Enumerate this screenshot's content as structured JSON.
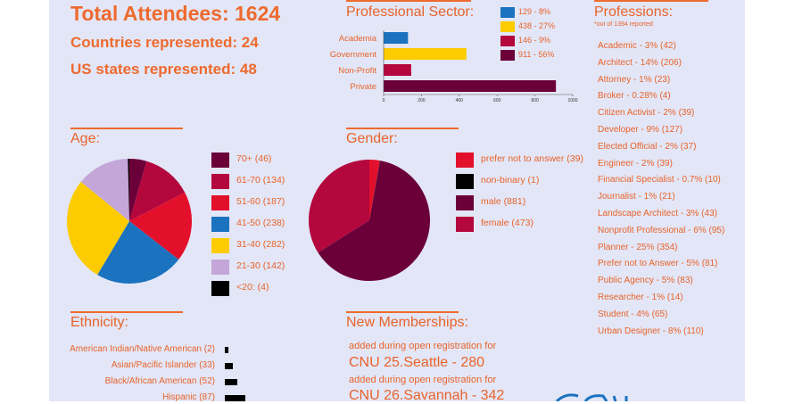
{
  "summary": {
    "total": "Total Attendees: 1624",
    "countries": "Countries represented: 24",
    "states": "US states represented: 48"
  },
  "colors": {
    "panel": "#e3e6f6",
    "accent": "#ee6a2f",
    "plum": "#6b0039",
    "crimson": "#b3073d",
    "red": "#e3102b",
    "blue": "#1b73c0",
    "gold": "#fccc00",
    "lavender": "#c4a6d8",
    "black": "#000000"
  },
  "sector": {
    "title": "Professional Sector:",
    "legend": [
      {
        "text": "129 - 8%",
        "color": "#1b73c0"
      },
      {
        "text": "438 - 27%",
        "color": "#fccc00"
      },
      {
        "text": "146 - 9%",
        "color": "#b3073d"
      },
      {
        "text": "911 - 56%",
        "color": "#6b0039"
      }
    ]
  },
  "professions": {
    "title": "Professions:",
    "note": "*out of 1394 reported",
    "items": [
      "Academic - 3% (42)",
      "Architect - 14% (206)",
      "Attorney - 1% (23)",
      "Broker - 0.28% (4)",
      "Citizen Activist - 2% (39)",
      "Developer - 9% (127)",
      "Elected Official - 2% (37)",
      "Engineer - 2% (39)",
      "Financial Specialist - 0.7% (10)",
      "Journalist - 1% (21)",
      "Landscape Architect - 3% (43)",
      "Nonprofit Professional - 6% (95)",
      "Planner - 25% (354)",
      "Prefer not to Answer - 5% (81)",
      "Public Agency - 5% (83)",
      "Researcher - 1% (14)",
      "Student - 4% (65)",
      "Urban Designer - 8% (110)"
    ]
  },
  "age": {
    "title": "Age:"
  },
  "gender": {
    "title": "Gender:"
  },
  "ethnicity": {
    "title": "Ethnicity:"
  },
  "memberships": {
    "title": "New Memberships:",
    "line1": "added during open registration for",
    "event1": "CNU 25.Seattle - 280",
    "line2": "added during open registration for",
    "event2": "CNU 26.Savannah - 342"
  },
  "chart_data": [
    {
      "id": "sector",
      "type": "bar",
      "orientation": "horizontal",
      "categories": [
        "Academia",
        "Government",
        "Non-Profit",
        "Private"
      ],
      "values": [
        129,
        438,
        146,
        911
      ],
      "colors": [
        "#1b73c0",
        "#fccc00",
        "#b3073d",
        "#6b0039"
      ],
      "xlim": [
        0,
        1000
      ],
      "xticks": [
        "0",
        "200",
        "400",
        "600",
        "800",
        "1000"
      ],
      "grid": false
    },
    {
      "id": "age",
      "type": "pie",
      "labels": [
        "70+ (46)",
        "61-70 (134)",
        "51-60 (187)",
        "41-50 (238)",
        "31-40 (282)",
        "21-30 (142)",
        "<20: (4)"
      ],
      "values": [
        46,
        134,
        187,
        238,
        282,
        142,
        4
      ],
      "colors": [
        "#6b0039",
        "#b3073d",
        "#e3102b",
        "#1b73c0",
        "#fccc00",
        "#c4a6d8",
        "#000000"
      ],
      "legend": "right"
    },
    {
      "id": "gender",
      "type": "pie",
      "labels": [
        "prefer not to answer (39)",
        "non-binary (1)",
        "male (881)",
        "female (473)"
      ],
      "values": [
        39,
        1,
        881,
        473
      ],
      "colors": [
        "#e3102b",
        "#000000",
        "#6b0039",
        "#b3073d"
      ],
      "legend": "right"
    },
    {
      "id": "ethnicity",
      "type": "bar",
      "orientation": "horizontal",
      "categories": [
        "American Indian/Native American (2)",
        "Asian/Pacific Islander (33)",
        "Black/African American (52)",
        "Hispanic (87)"
      ],
      "values": [
        2,
        33,
        52,
        87
      ],
      "colors": [
        "#000000",
        "#000000",
        "#000000",
        "#000000"
      ]
    }
  ]
}
